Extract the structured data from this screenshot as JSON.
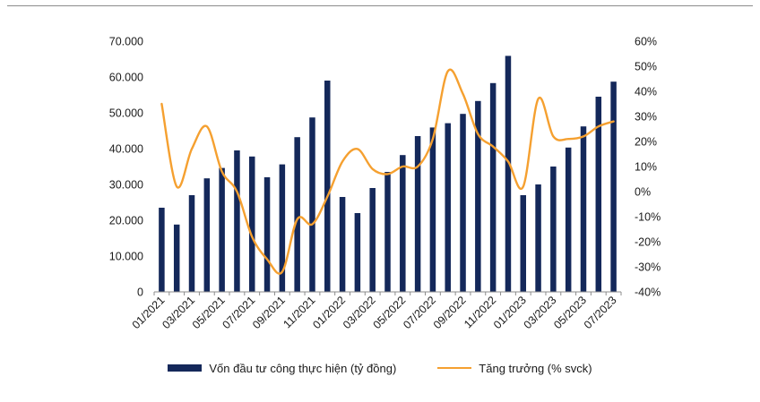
{
  "chart_data": {
    "type": "bar",
    "categories": [
      "01/2021",
      "02/2021",
      "03/2021",
      "04/2021",
      "05/2021",
      "06/2021",
      "07/2021",
      "08/2021",
      "09/2021",
      "10/2021",
      "11/2021",
      "12/2021",
      "01/2022",
      "02/2022",
      "03/2022",
      "04/2022",
      "05/2022",
      "06/2022",
      "07/2022",
      "08/2022",
      "09/2022",
      "10/2022",
      "11/2022",
      "12/2022",
      "01/2023",
      "02/2023",
      "03/2023",
      "04/2023",
      "05/2023",
      "06/2023",
      "07/2023"
    ],
    "x_tick_labels": [
      "01/2021",
      "03/2021",
      "05/2021",
      "07/2021",
      "09/2021",
      "11/2021",
      "01/2022",
      "03/2022",
      "05/2022",
      "07/2022",
      "09/2022",
      "11/2022",
      "01/2023",
      "03/2023",
      "05/2023",
      "07/2023"
    ],
    "series": [
      {
        "name": "Vốn đầu tư công thực hiện (tỷ đồng)",
        "type": "bar",
        "axis": "left",
        "color": "#14285a",
        "values": [
          23500,
          18800,
          27000,
          31700,
          34600,
          39500,
          37800,
          32000,
          35600,
          43200,
          48700,
          59000,
          26500,
          22000,
          29000,
          33500,
          38200,
          43500,
          45900,
          47100,
          49700,
          53300,
          58300,
          65900,
          27000,
          30000,
          35000,
          40300,
          46200,
          54500,
          58700
        ]
      },
      {
        "name": "Tăng trưởng (% svck)",
        "type": "line",
        "axis": "right",
        "color": "#f5a030",
        "values": [
          35,
          2,
          17,
          26,
          8,
          0,
          -18,
          -27,
          -32,
          -11,
          -13,
          -2,
          12,
          17,
          9,
          7,
          10,
          10,
          21,
          48,
          39,
          23,
          18,
          12,
          2,
          37,
          22,
          21,
          22,
          26,
          28
        ]
      }
    ],
    "y_left": {
      "min": 0,
      "max": 70000,
      "step": 10000,
      "tick_labels": [
        "0",
        "10.000",
        "20.000",
        "30.000",
        "40.000",
        "50.000",
        "60.000",
        "70.000"
      ]
    },
    "y_right": {
      "min": -40,
      "max": 60,
      "step": 10,
      "tick_labels": [
        "-40%",
        "-30%",
        "-20%",
        "-10%",
        "0%",
        "10%",
        "20%",
        "30%",
        "40%",
        "50%",
        "60%"
      ]
    },
    "grid": false,
    "legend_position": "bottom",
    "title": "",
    "xlabel": "",
    "ylabel": ""
  }
}
